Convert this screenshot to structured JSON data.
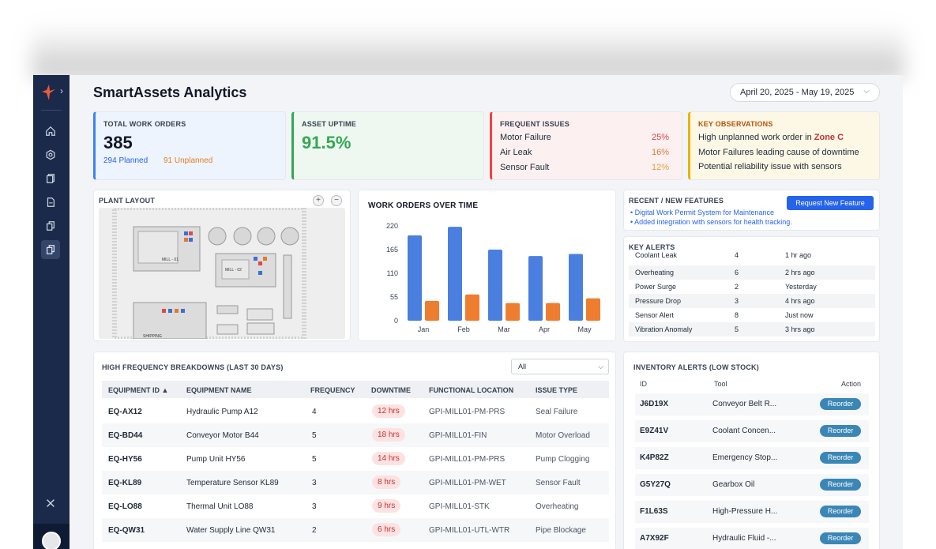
{
  "app": {
    "title": "SmartAssets Analytics",
    "date_range": "April 20, 2025 - May 19, 2025"
  },
  "sidebar": {
    "items": [
      {
        "icon": "home-icon"
      },
      {
        "icon": "gear-icon"
      },
      {
        "icon": "documents-icon"
      },
      {
        "icon": "file-icon"
      },
      {
        "icon": "copy-icon"
      },
      {
        "icon": "reports-icon",
        "active": true
      }
    ],
    "bottom_icon": "tools-icon"
  },
  "kpis": {
    "total_work_orders": {
      "label": "TOTAL WORK ORDERS",
      "value": "385",
      "planned": "294 Planned",
      "unplanned": "91 Unplanned"
    },
    "asset_uptime": {
      "label": "ASSET UPTIME",
      "value": "91.5%"
    },
    "frequent_issues": {
      "label": "FREQUENT ISSUES",
      "items": [
        {
          "name": "Motor Failure",
          "pct": "25%",
          "color": "#d64545"
        },
        {
          "name": "Air Leak",
          "pct": "16%",
          "color": "#e0773a"
        },
        {
          "name": "Sensor Fault",
          "pct": "12%",
          "color": "#e0a23a"
        }
      ]
    },
    "key_observations": {
      "label": "KEY OBSERVATIONS",
      "line1_prefix": "High unplanned work order in ",
      "line1_emph": "Zone C",
      "line2": "Motor Failures leading cause of downtime",
      "line3": "Potential reliability issue with sensors"
    }
  },
  "plant_layout": {
    "title": "PLANT LAYOUT",
    "zoom_in": "+",
    "zoom_out": "−",
    "labels": [
      "MILL - 01",
      "MILL - 02",
      "SHIPPING"
    ]
  },
  "work_orders_chart": {
    "title": "WORK ORDERS OVER TIME"
  },
  "chart_data": {
    "type": "bar",
    "title": "WORK ORDERS OVER TIME",
    "categories": [
      "Jan",
      "Feb",
      "Mar",
      "Apr",
      "May"
    ],
    "series": [
      {
        "values": [
          198,
          218,
          165,
          150,
          155
        ],
        "color": "#4a7fe0"
      },
      {
        "values": [
          46,
          61,
          41,
          41,
          52
        ],
        "color": "#ee7d30"
      }
    ],
    "yticks": [
      "0",
      "55",
      "110",
      "165",
      "220"
    ],
    "ylim": [
      0,
      220
    ],
    "grid": false
  },
  "features": {
    "title": "RECENT / NEW FEATURES",
    "button": "Request New Feature",
    "items": [
      "Digital Work Permit System for Maintenance",
      "Added integration with sensors for health tracking."
    ]
  },
  "key_alerts": {
    "title": "KEY ALERTS",
    "rows": [
      {
        "name": "Coolant Leak",
        "count": "4",
        "time": "1 hr ago"
      },
      {
        "name": "Overheating",
        "count": "6",
        "time": "2 hrs ago"
      },
      {
        "name": "Power Surge",
        "count": "2",
        "time": "Yesterday"
      },
      {
        "name": "Pressure Drop",
        "count": "3",
        "time": "4 hrs ago"
      },
      {
        "name": "Sensor Alert",
        "count": "8",
        "time": "Just now"
      },
      {
        "name": "Vibration Anomaly",
        "count": "5",
        "time": "3 hrs ago"
      }
    ]
  },
  "breakdowns": {
    "title": "HIGH FREQUENCY BREAKDOWNS (LAST 30 DAYS)",
    "filter": "All",
    "columns": [
      "EQUIPMENT ID ▲",
      "EQUIPMENT NAME",
      "FREQUENCY",
      "DOWNTIME",
      "FUNCTIONAL LOCATION",
      "ISSUE TYPE"
    ],
    "rows": [
      {
        "id": "EQ-AX12",
        "name": "Hydraulic Pump A12",
        "freq": "4",
        "downtime": "12 hrs",
        "loc": "GPI-MILL01-PM-PRS",
        "issue": "Seal Failure"
      },
      {
        "id": "EQ-BD44",
        "name": "Conveyor Motor B44",
        "freq": "5",
        "downtime": "18 hrs",
        "loc": "GPI-MILL01-FIN",
        "issue": "Motor Overload"
      },
      {
        "id": "EQ-HY56",
        "name": "Pump Unit HY56",
        "freq": "5",
        "downtime": "14 hrs",
        "loc": "GPI-MILL01-PM-PRS",
        "issue": "Pump Clogging"
      },
      {
        "id": "EQ-KL89",
        "name": "Temperature Sensor KL89",
        "freq": "3",
        "downtime": "8 hrs",
        "loc": "GPI-MILL01-PM-WET",
        "issue": "Sensor Fault"
      },
      {
        "id": "EQ-LO88",
        "name": "Thermal Unit LO88",
        "freq": "3",
        "downtime": "9 hrs",
        "loc": "GPI-MILL01-STK",
        "issue": "Overheating"
      },
      {
        "id": "EQ-QW31",
        "name": "Water Supply Line QW31",
        "freq": "2",
        "downtime": "6 hrs",
        "loc": "GPI-MILL01-UTL-WTR",
        "issue": "Pipe Blockage"
      }
    ]
  },
  "inventory": {
    "title": "INVENTORY ALERTS (LOW STOCK)",
    "columns": [
      "ID",
      "Tool",
      "Action"
    ],
    "action_label": "Reorder",
    "rows": [
      {
        "id": "J6D19X",
        "tool": "Conveyor Belt R..."
      },
      {
        "id": "E9Z41V",
        "tool": "Coolant Concen..."
      },
      {
        "id": "K4P82Z",
        "tool": "Emergency Stop..."
      },
      {
        "id": "G5Y27Q",
        "tool": "Gearbox Oil"
      },
      {
        "id": "F1L63S",
        "tool": "High-Pressure H..."
      },
      {
        "id": "A7X92F",
        "tool": "Hydraulic Fluid -..."
      }
    ]
  }
}
